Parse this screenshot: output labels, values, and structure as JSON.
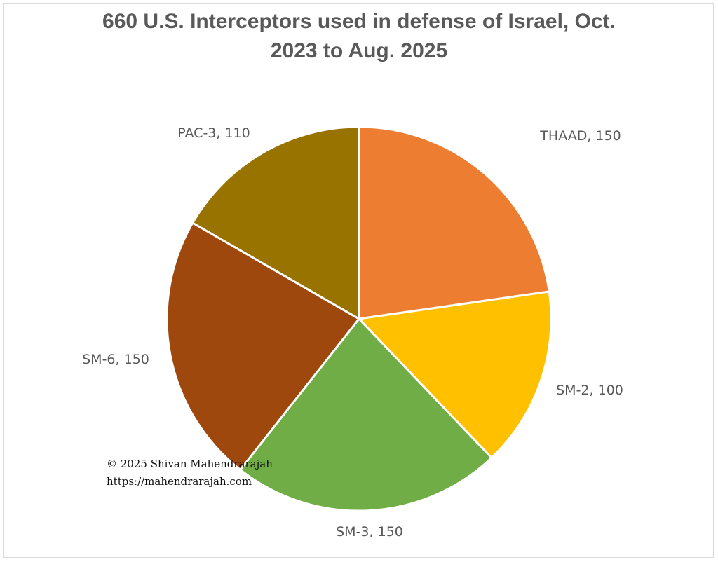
{
  "chart_data": {
    "type": "pie",
    "title_line1": "660 U.S. Interceptors used in defense of Israel, Oct.",
    "title_line2": "2023 to Aug. 2025",
    "slices": [
      {
        "name": "THAAD",
        "value": 150,
        "label": "THAAD, 150",
        "color": "#ED7D31"
      },
      {
        "name": "SM-2",
        "value": 100,
        "label": "SM-2, 100",
        "color": "#FFC000"
      },
      {
        "name": "SM-3",
        "value": 150,
        "label": "SM-3, 150",
        "color": "#70AD47"
      },
      {
        "name": "SM-6",
        "value": 150,
        "label": "SM-6, 150",
        "color": "#9E480E"
      },
      {
        "name": "PAC-3",
        "value": 110,
        "label": "PAC-3, 110",
        "color": "#997300"
      }
    ],
    "legend": "none"
  },
  "credit": {
    "copyright": "© 2025 Shivan Mahendrarajah",
    "url": "https://mahendrarajah.com"
  }
}
